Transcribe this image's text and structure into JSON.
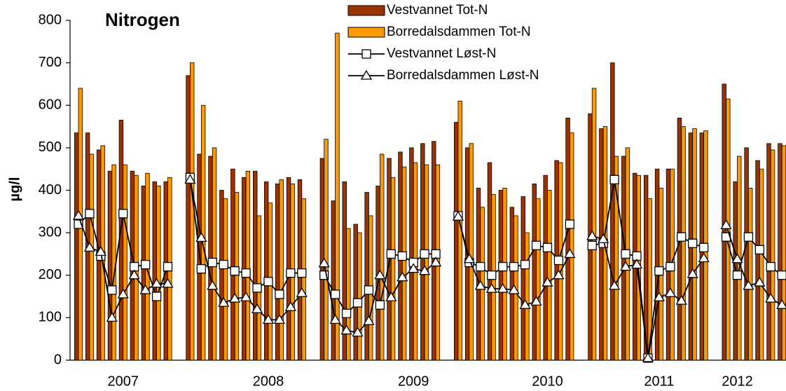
{
  "chart_data": {
    "type": "bar",
    "title": "Nitrogen",
    "y_label": "µg/l",
    "categories": [
      null,
      null,
      null,
      null,
      "2007",
      null,
      null,
      null,
      null,
      null,
      null,
      null,
      null,
      null,
      null,
      null,
      null,
      "2008",
      null,
      null,
      null,
      null,
      null,
      null,
      null,
      null,
      null,
      null,
      null,
      null,
      "2009",
      null,
      null,
      null,
      null,
      null,
      null,
      null,
      null,
      null,
      null,
      null,
      "2010",
      null,
      null,
      null,
      null,
      null,
      null,
      null,
      null,
      null,
      "2011",
      null,
      null,
      null,
      null,
      null,
      null,
      "2012",
      null,
      null,
      null,
      null
    ],
    "series": [
      {
        "name": "Vestvannet Tot-N",
        "type": "bar",
        "color": "#993300",
        "values": [
          535,
          535,
          495,
          445,
          565,
          445,
          410,
          420,
          420,
          null,
          670,
          485,
          480,
          400,
          450,
          430,
          445,
          420,
          415,
          430,
          425,
          null,
          475,
          375,
          420,
          320,
          395,
          410,
          475,
          490,
          500,
          510,
          515,
          null,
          560,
          500,
          405,
          465,
          400,
          360,
          385,
          415,
          435,
          470,
          570,
          null,
          580,
          545,
          700,
          480,
          440,
          435,
          450,
          450,
          570,
          535,
          535,
          null,
          650,
          420,
          500,
          470,
          510,
          510
        ]
      },
      {
        "name": "Borredalsdammen Tot-N",
        "type": "bar",
        "color": "#ff9900",
        "values": [
          640,
          485,
          505,
          460,
          460,
          435,
          440,
          410,
          430,
          null,
          700,
          600,
          500,
          380,
          395,
          445,
          340,
          370,
          425,
          415,
          380,
          null,
          520,
          770,
          310,
          300,
          340,
          485,
          430,
          455,
          465,
          460,
          460,
          null,
          610,
          510,
          360,
          390,
          405,
          340,
          300,
          380,
          400,
          465,
          535,
          null,
          640,
          550,
          480,
          500,
          435,
          380,
          405,
          450,
          550,
          545,
          540,
          null,
          615,
          480,
          405,
          450,
          495,
          505
        ]
      },
      {
        "name": "Vestvannet Løst-N",
        "type": "line",
        "marker": "square",
        "color": "#000000",
        "values": [
          320,
          345,
          245,
          165,
          345,
          220,
          225,
          150,
          220,
          null,
          430,
          215,
          230,
          225,
          210,
          205,
          170,
          185,
          155,
          205,
          205,
          null,
          200,
          155,
          110,
          135,
          165,
          130,
          250,
          245,
          230,
          250,
          250,
          null,
          340,
          230,
          220,
          200,
          220,
          220,
          225,
          270,
          265,
          235,
          320,
          null,
          270,
          275,
          425,
          250,
          245,
          5,
          210,
          220,
          290,
          275,
          265,
          null,
          290,
          200,
          290,
          260,
          220,
          200
        ]
      },
      {
        "name": "Borredalsdammen Løst-N",
        "type": "line",
        "marker": "triangle",
        "color": "#000000",
        "values": [
          340,
          265,
          255,
          100,
          155,
          200,
          165,
          180,
          180,
          null,
          425,
          288,
          175,
          135,
          145,
          148,
          120,
          95,
          95,
          125,
          158,
          null,
          228,
          95,
          70,
          65,
          92,
          200,
          148,
          195,
          215,
          210,
          230,
          null,
          338,
          238,
          175,
          168,
          168,
          165,
          130,
          138,
          183,
          200,
          250,
          null,
          292,
          285,
          175,
          220,
          225,
          5,
          148,
          158,
          140,
          203,
          240,
          null,
          318,
          238,
          175,
          183,
          145,
          130
        ]
      }
    ],
    "ylim": [
      0,
      800
    ],
    "yticks": [
      0,
      100,
      200,
      300,
      400,
      500,
      600,
      700,
      800
    ],
    "grid": false
  }
}
